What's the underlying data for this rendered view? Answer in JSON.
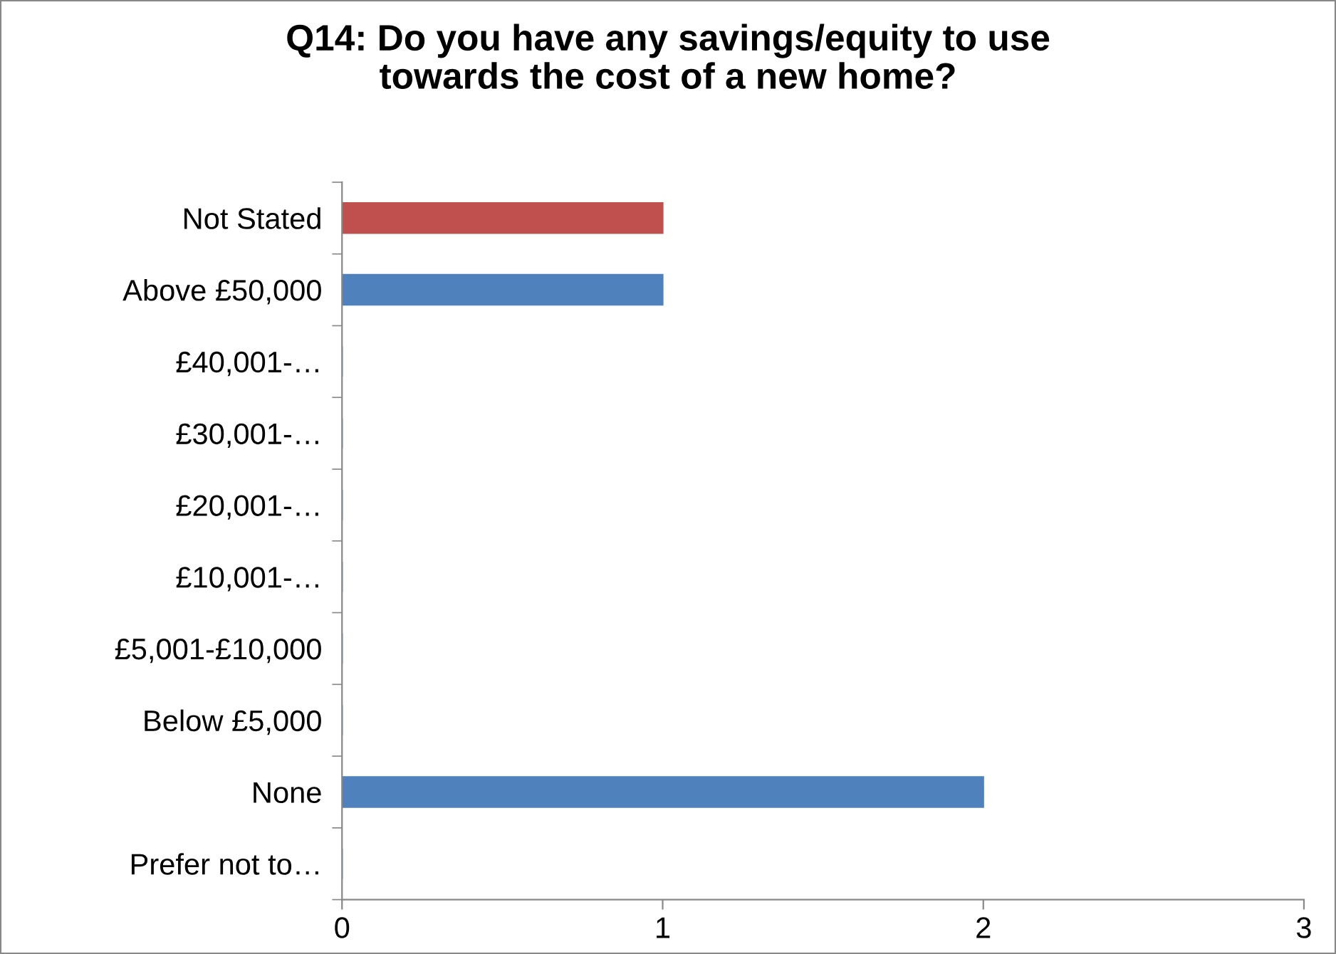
{
  "chart_data": {
    "type": "bar",
    "orientation": "horizontal",
    "title": "Q14: Do you have any savings/equity to use\ntowards the cost of a new home?",
    "categories": [
      "Not Stated",
      "Above £50,000",
      "£40,001-…",
      "£30,001-…",
      "£20,001-…",
      "£10,001-…",
      "£5,001-£10,000",
      "Below £5,000",
      "None",
      "Prefer not to…"
    ],
    "values": [
      1,
      1,
      0,
      0,
      0,
      0,
      0,
      0,
      2,
      0
    ],
    "colors": [
      "#c0504d",
      "#4f81bd",
      "#4f81bd",
      "#4f81bd",
      "#4f81bd",
      "#4f81bd",
      "#4f81bd",
      "#4f81bd",
      "#4f81bd",
      "#4f81bd"
    ],
    "xlim": [
      0,
      3
    ],
    "xticks": [
      0,
      1,
      2,
      3
    ],
    "grid": false,
    "legend": false
  }
}
